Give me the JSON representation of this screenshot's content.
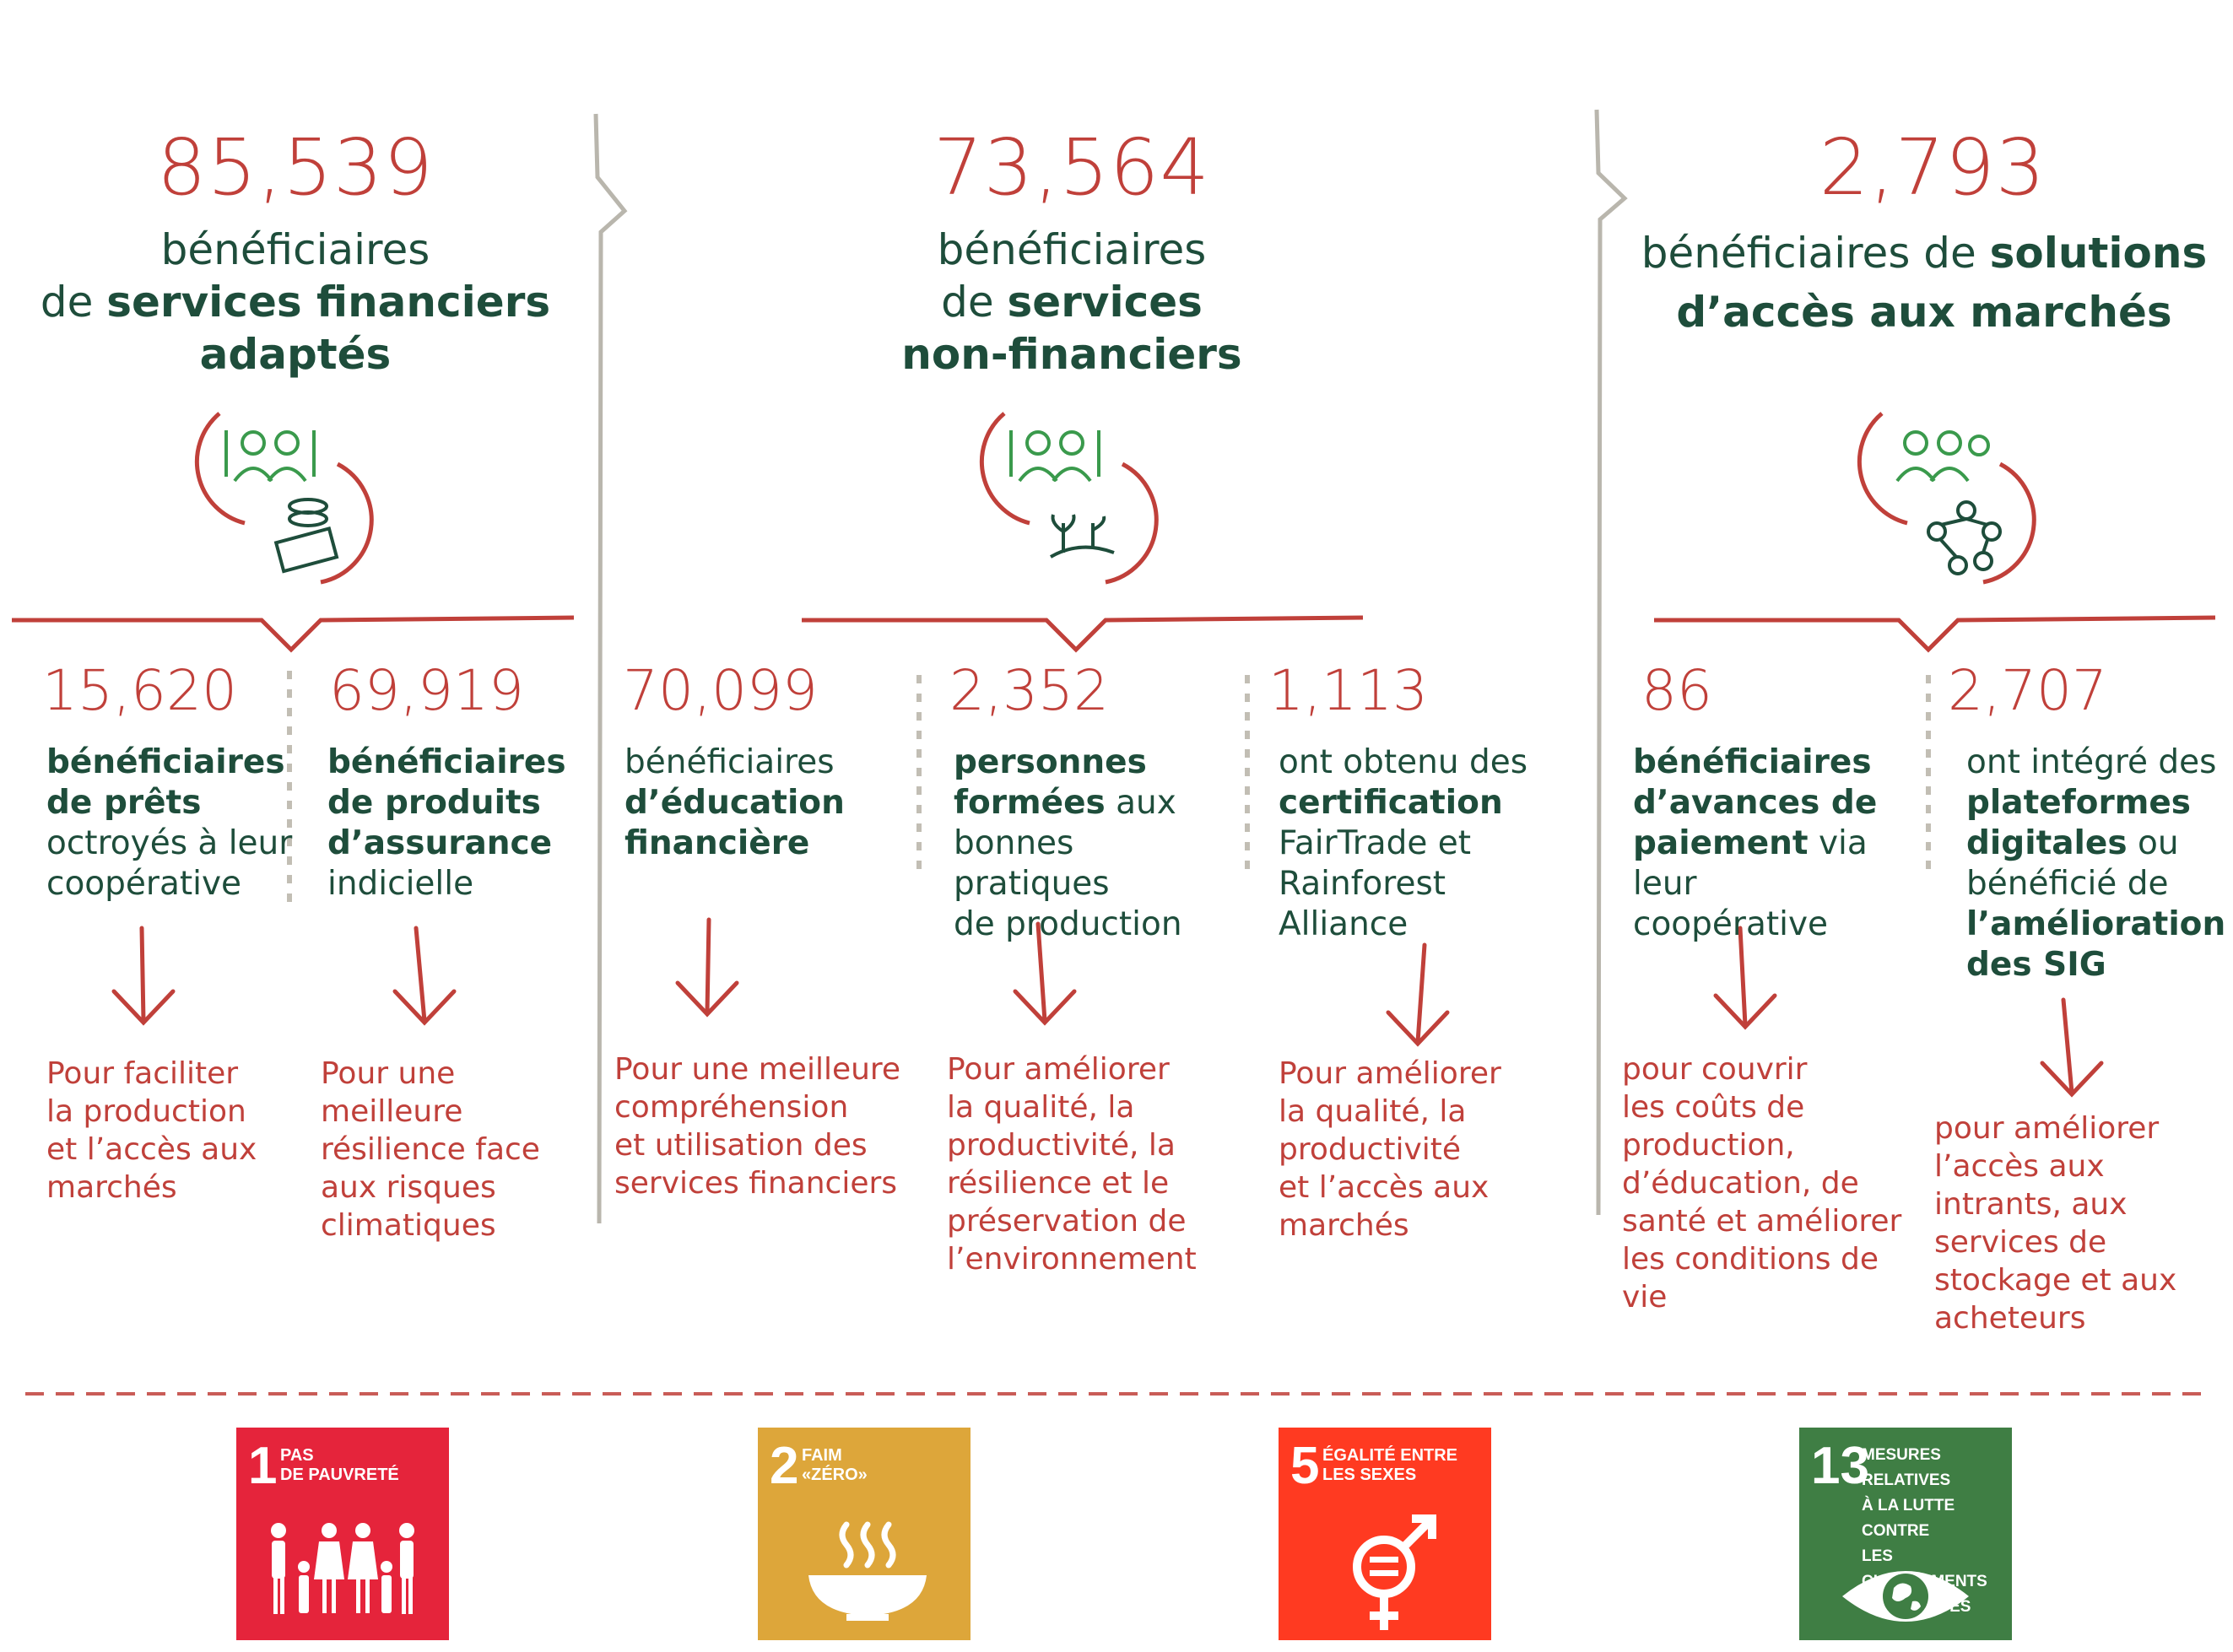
{
  "colors": {
    "red": "#c0403a",
    "green": "#1e4d3b",
    "iconGreen": "#3a9a4c",
    "sdg1": "#e5243b",
    "sdg2": "#dda63a",
    "sdg5": "#ff3a21",
    "sdg13": "#3f7e44"
  },
  "columns": [
    {
      "total": "85,539",
      "heading": {
        "pre": "bénéficiaires",
        "mid": "de ",
        "bold": "services financiers",
        "bold2": "adaptés"
      },
      "icon": "farmers-money-icon",
      "items": [
        {
          "number": "15,620",
          "bold1": "bénéficiaires",
          "bold2": "de prêts",
          "rest1": "octroyés à leur",
          "rest2": "coopérative",
          "outcome": [
            "Pour faciliter",
            "la production",
            "et l’accès aux",
            "marchés"
          ]
        },
        {
          "number": "69,919",
          "bold1": "bénéficiaires",
          "bold2": "de produits",
          "bold3": "d’assurance",
          "rest1": "indicielle",
          "outcome": [
            "Pour une",
            "meilleure",
            "résilience face",
            "aux risques",
            "climatiques"
          ]
        }
      ]
    },
    {
      "total": "73,564",
      "heading": {
        "pre": "bénéficiaires",
        "mid": "de ",
        "bold": "services",
        "bold2": "non-financiers"
      },
      "icon": "farmers-plants-icon",
      "items": [
        {
          "number": "70,099",
          "rest1": "bénéficiaires",
          "bold1": "d’éducation",
          "bold2": "financière",
          "outcome": [
            "Pour une meilleure",
            "compréhension",
            "et utilisation des",
            "services financiers"
          ]
        },
        {
          "number": "2,352",
          "bold1": "personnes",
          "bold2": "formées",
          "rest0": " aux",
          "rest1": "bonnes pratiques",
          "rest2": "de production",
          "outcome": [
            "Pour améliorer",
            "la qualité, la",
            "productivité, la",
            "résilience et le",
            "préservation de",
            "l’environnement"
          ]
        },
        {
          "number": "1,113",
          "rest1": "ont obtenu des",
          "bold1": "certification",
          "rest2": "FairTrade et",
          "rest3": "Rainforest Alliance",
          "outcome": [
            "Pour améliorer",
            "la qualité, la",
            "productivité",
            "et l’accès aux",
            "marchés"
          ]
        }
      ]
    },
    {
      "total": "2,793",
      "heading": {
        "pre": "bénéficiaires de ",
        "bold": "solutions",
        "bold2": "d’accès aux marchés"
      },
      "icon": "farmers-network-icon",
      "items": [
        {
          "number": "86",
          "bold1": "bénéficiaires",
          "bold2": "d’avances de",
          "bold3": "paiement",
          "rest0": " via leur",
          "rest1": "coopérative",
          "outcome": [
            "pour couvrir",
            "les coûts de",
            "production,",
            "d’éducation, de",
            "santé et améliorer",
            "les conditions de",
            "vie"
          ]
        },
        {
          "number": "2,707",
          "rest1": "ont intégré des",
          "bold1": "plateformes",
          "bold2": "digitales",
          "rest0": " ou",
          "rest2": "bénéficié de",
          "bold3": "l’amélioration",
          "bold4": "des SIG",
          "outcome": [
            "pour améliorer",
            "l’accès aux",
            "intrants, aux",
            "services de",
            "stockage et aux",
            "acheteurs"
          ]
        }
      ]
    }
  ],
  "sdgs": [
    {
      "number": "1",
      "title1": "PAS",
      "title2": "DE PAUVRETÉ",
      "icon": "family-icon"
    },
    {
      "number": "2",
      "title1": "FAIM",
      "title2": "«ZÉRO»",
      "icon": "bowl-icon"
    },
    {
      "number": "5",
      "title1": "ÉGALITÉ ENTRE",
      "title2": "LES SEXES",
      "icon": "gender-equality-icon"
    },
    {
      "number": "13",
      "title1": "MESURES RELATIVES",
      "title2": "À LA LUTTE CONTRE",
      "title3": "LES CHANGEMENTS",
      "title4": "CLIMATIQUES",
      "icon": "eye-globe-icon"
    }
  ]
}
